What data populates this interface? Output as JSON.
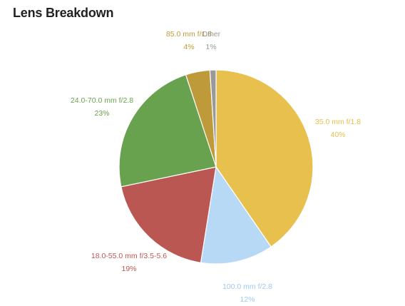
{
  "title": "Lens Breakdown",
  "chart_data": {
    "type": "pie",
    "title": "Lens Breakdown",
    "slices": [
      {
        "label": "35.0 mm f/1.8",
        "value": 40,
        "percent": "40%",
        "color": "#e8c04e"
      },
      {
        "label": "100.0 mm f/2.8",
        "value": 12,
        "percent": "12%",
        "color": "#b8d9f5"
      },
      {
        "label": "18.0-55.0 mm f/3.5-5.6",
        "value": 19,
        "percent": "19%",
        "color": "#bb5752"
      },
      {
        "label": "24.0-70.0 mm f/2.8",
        "value": 23,
        "percent": "23%",
        "color": "#68a24f"
      },
      {
        "label": "85.0 mm f/1.8",
        "value": 4,
        "percent": "4%",
        "color": "#bf9a3a"
      },
      {
        "label": "Other",
        "value": 1,
        "percent": "1%",
        "color": "#999999"
      }
    ],
    "start_angle_deg": 0,
    "direction": "clockwise",
    "legend": "none"
  }
}
